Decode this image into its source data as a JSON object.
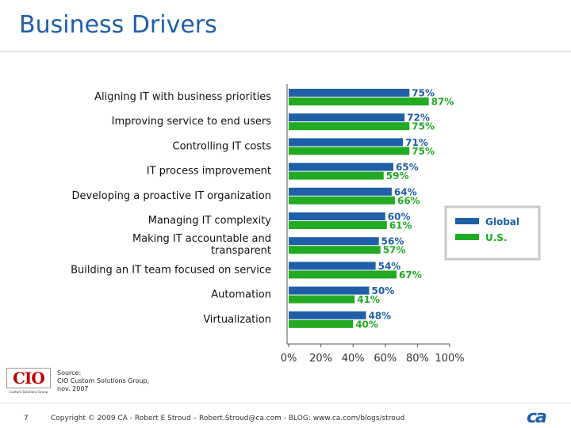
{
  "slide": {
    "title": "Business Drivers",
    "page_number": "7",
    "copyright": "Copyright © 2009 CA - Robert E Stroud – Robert.Stroud@ca.com - BLOG: www.ca.com/blogs/stroud",
    "source_lines": [
      "Source:",
      "CIO Custom Solutions Group,",
      "nov. 2007"
    ],
    "cio_logo_text": "CIO",
    "cio_logo_subtext": "Custom Solutions Group",
    "ca_logo_text": "ca"
  },
  "chart_data": {
    "type": "bar",
    "orientation": "horizontal",
    "categories": [
      "Aligning IT with business priorities",
      "Improving service to end users",
      "Controlling IT costs",
      "IT process improvement",
      "Developing a proactive IT organization",
      "Managing IT complexity",
      "Making IT accountable  and transparent",
      "Building an IT team focused on service",
      "Automation",
      "Virtualization"
    ],
    "series": [
      {
        "name": "Global",
        "color": "#1f5fa8",
        "values": [
          75,
          72,
          71,
          65,
          64,
          60,
          56,
          54,
          50,
          48
        ]
      },
      {
        "name": "U.S.",
        "color": "#22aa22",
        "values": [
          87,
          75,
          75,
          59,
          66,
          61,
          57,
          67,
          41,
          40
        ]
      }
    ],
    "value_suffix": "%",
    "xlim": [
      0,
      100
    ],
    "xticks": [
      "0%",
      "20%",
      "40%",
      "60%",
      "80%",
      "100%"
    ],
    "legend_position": "right",
    "grid": false
  }
}
